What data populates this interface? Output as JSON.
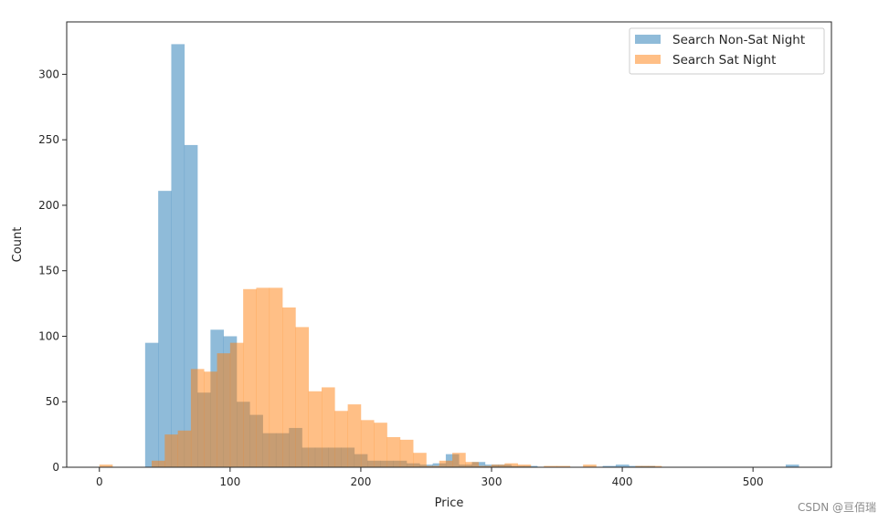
{
  "chart_data": {
    "type": "histogram",
    "title": "",
    "xlabel": "Price",
    "ylabel": "Count",
    "xlim": [
      -25,
      560
    ],
    "ylim": [
      0,
      340
    ],
    "xticks": [
      0,
      100,
      200,
      300,
      400,
      500
    ],
    "yticks": [
      0,
      50,
      100,
      150,
      200,
      250,
      300
    ],
    "bin_width": 10,
    "legend_position": "top-right",
    "grid": false,
    "series": [
      {
        "name": "Search Non-Sat Night",
        "color": "#1f77b4",
        "alpha": 0.5,
        "bin_edges": [
          35,
          45,
          55,
          65,
          75,
          85,
          95,
          105,
          115,
          125,
          135,
          145,
          155,
          165,
          175,
          185,
          195,
          205,
          215,
          225,
          235,
          245,
          255,
          265,
          275,
          285,
          295,
          305,
          315,
          325,
          335,
          345,
          355,
          365,
          375,
          385,
          395,
          405,
          415,
          425,
          435,
          445,
          455,
          465,
          475,
          485,
          495,
          505,
          515,
          525,
          535
        ],
        "counts": [
          95,
          211,
          323,
          246,
          57,
          105,
          100,
          50,
          40,
          26,
          26,
          30,
          15,
          15,
          15,
          15,
          10,
          5,
          5,
          5,
          3,
          2,
          3,
          10,
          2,
          4,
          2,
          2,
          1,
          1,
          0,
          0,
          0,
          0,
          0,
          1,
          2,
          1,
          1,
          0,
          0,
          0,
          0,
          0,
          0,
          0,
          0,
          0,
          0,
          2
        ]
      },
      {
        "name": "Search Sat Night",
        "color": "#ff7f0e",
        "alpha": 0.5,
        "bin_edges": [
          0,
          10,
          20,
          30,
          40,
          50,
          60,
          70,
          80,
          90,
          100,
          110,
          120,
          130,
          140,
          150,
          160,
          170,
          180,
          190,
          200,
          210,
          220,
          230,
          240,
          250,
          260,
          270,
          280,
          290,
          300,
          310,
          320,
          330,
          340,
          350,
          360,
          370,
          380,
          390,
          400,
          410,
          420,
          430
        ],
        "counts": [
          2,
          0,
          0,
          0,
          5,
          25,
          28,
          75,
          73,
          87,
          95,
          136,
          137,
          137,
          122,
          107,
          58,
          61,
          43,
          48,
          36,
          34,
          23,
          21,
          11,
          1,
          5,
          11,
          4,
          1,
          2,
          3,
          2,
          0,
          1,
          1,
          0,
          2,
          0,
          0,
          0,
          1,
          1
        ]
      }
    ]
  },
  "watermark": "CSDN @亘佰瑞"
}
